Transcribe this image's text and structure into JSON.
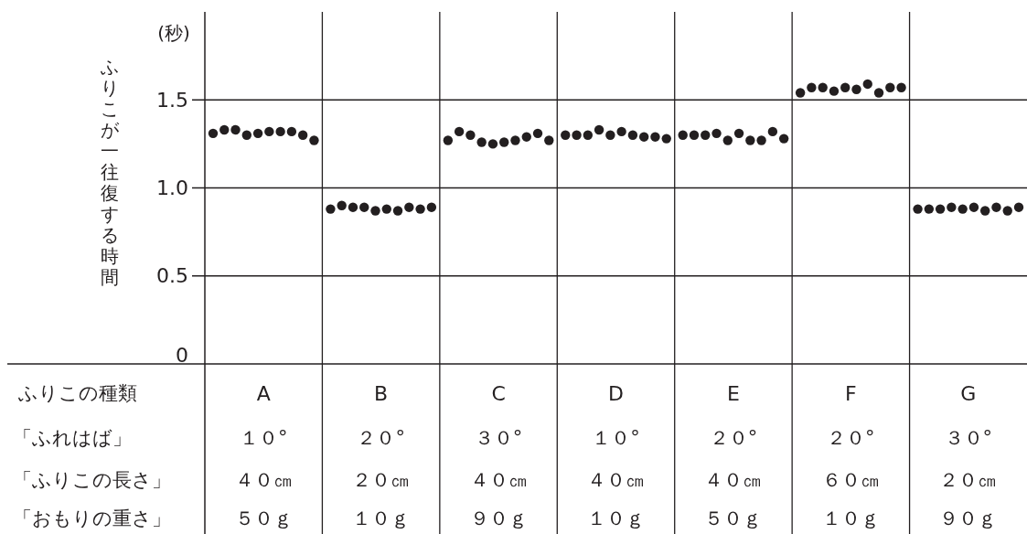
{
  "chart_data": {
    "type": "scatter",
    "ylabel": "ふりこが一往復する時間",
    "xlabel": "ふりこの種類",
    "categories": [
      "A",
      "B",
      "C",
      "D",
      "E",
      "F",
      "G"
    ],
    "annotations": [
      "(秒)",
      "「ふれはば」",
      "１０°",
      "２０°",
      "３０°",
      "１０°",
      "２０°",
      "２０°",
      "３０°",
      "「ふりこの長さ」",
      "４０㎝",
      "２０㎝",
      "４０㎝",
      "４０㎝",
      "４０㎝",
      "６０㎝",
      "２０㎝",
      "「おもりの重さ」",
      "５０ｇ",
      "１０ｇ",
      "９０ｇ",
      "１０ｇ",
      "５０ｇ",
      "１０ｇ",
      "９０ｇ"
    ],
    "series": [
      {
        "color": "#231f20",
        "values": [
          1.31,
          0.88,
          1.27,
          1.3,
          1.3,
          1.54,
          0.88
        ]
      },
      {
        "color": "#231f20",
        "values": [
          1.33,
          0.9,
          1.32,
          1.3,
          1.3,
          1.57,
          0.88
        ]
      },
      {
        "color": "#231f20",
        "values": [
          1.33,
          0.89,
          1.3,
          1.3,
          1.3,
          1.57,
          0.88
        ]
      },
      {
        "color": "#231f20",
        "values": [
          1.3,
          0.89,
          1.26,
          1.33,
          1.31,
          1.55,
          0.89
        ]
      },
      {
        "color": "#231f20",
        "values": [
          1.31,
          0.87,
          1.25,
          1.3,
          1.27,
          1.57,
          0.88
        ]
      },
      {
        "color": "#231f20",
        "values": [
          1.32,
          0.88,
          1.26,
          1.32,
          1.31,
          1.56,
          0.89
        ]
      },
      {
        "color": "#231f20",
        "values": [
          1.32,
          0.87,
          1.27,
          1.3,
          1.27,
          1.59,
          0.87
        ]
      },
      {
        "color": "#231f20",
        "values": [
          1.32,
          0.89,
          1.29,
          1.29,
          1.27,
          1.54,
          0.89
        ]
      },
      {
        "color": "#231f20",
        "values": [
          1.3,
          0.88,
          1.31,
          1.29,
          1.32,
          1.57,
          0.87
        ]
      },
      {
        "color": "#231f20",
        "values": [
          1.27,
          0.89,
          1.27,
          1.28,
          1.28,
          1.57,
          0.89
        ]
      }
    ],
    "ylim": [
      0,
      2
    ],
    "yticks": [
      0,
      0.5,
      {
        "value": 1,
        "label": "1.0"
      },
      1.5
    ],
    "grid": "y",
    "marker": "circle"
  }
}
